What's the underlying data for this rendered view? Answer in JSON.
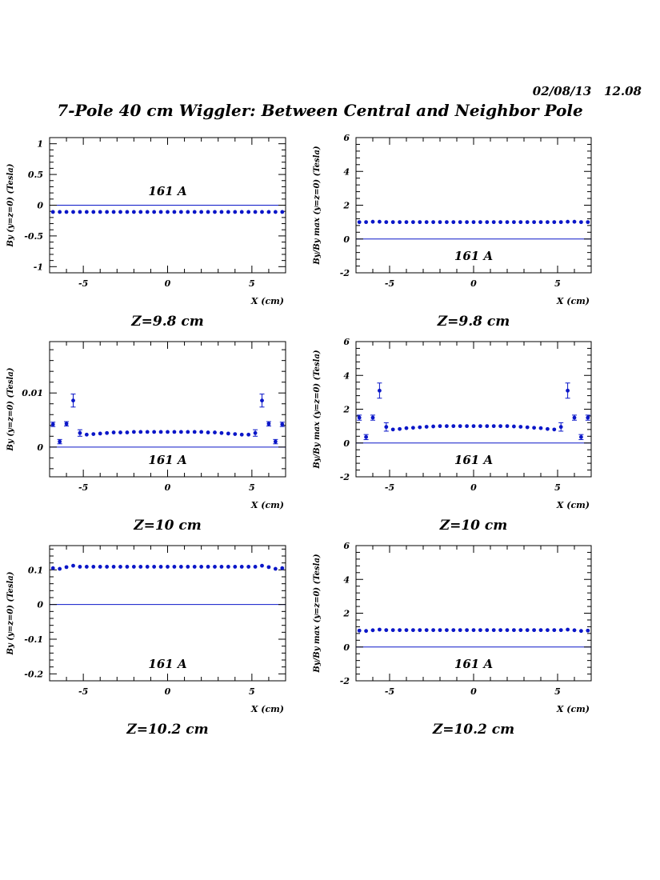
{
  "header": {
    "timestamp": "02/08/13   12.08",
    "title": "7-Pole 40 cm Wiggler: Between Central and Neighbor Pole"
  },
  "chart_data": [
    {
      "type": "scatter",
      "ylabel": "By (y=z=0) (Tesla)",
      "xlabel": "X (cm)",
      "annotation": "161 A",
      "caption": "Z=9.8 cm",
      "xlim": [
        -7,
        7
      ],
      "ylim": [
        -1.1,
        1.1
      ],
      "xticks": [
        -5,
        0,
        5
      ],
      "yticks": [
        -1,
        -0.5,
        0,
        0.5,
        1
      ],
      "ytick_labels": [
        "-1",
        "-0.5",
        "0",
        "0.5",
        "1"
      ],
      "zero_line": true,
      "x": [
        -6.8,
        -6.4,
        -6.0,
        -5.6,
        -5.2,
        -4.8,
        -4.4,
        -4.0,
        -3.6,
        -3.2,
        -2.8,
        -2.4,
        -2.0,
        -1.6,
        -1.2,
        -0.8,
        -0.4,
        0.0,
        0.4,
        0.8,
        1.2,
        1.6,
        2.0,
        2.4,
        2.8,
        3.2,
        3.6,
        4.0,
        4.4,
        4.8,
        5.2,
        5.6,
        6.0,
        6.4,
        6.8
      ],
      "y": [
        -0.11,
        -0.11,
        -0.11,
        -0.11,
        -0.11,
        -0.11,
        -0.11,
        -0.11,
        -0.11,
        -0.11,
        -0.11,
        -0.11,
        -0.11,
        -0.11,
        -0.11,
        -0.11,
        -0.11,
        -0.11,
        -0.11,
        -0.11,
        -0.11,
        -0.11,
        -0.11,
        -0.11,
        -0.11,
        -0.11,
        -0.11,
        -0.11,
        -0.11,
        -0.11,
        -0.11,
        -0.11,
        -0.11,
        -0.11,
        -0.11
      ]
    },
    {
      "type": "scatter",
      "ylabel": "By/By max (y=z=0) (Tesla)",
      "xlabel": "X (cm)",
      "annotation": "161 A",
      "caption": "Z=9.8 cm",
      "xlim": [
        -7,
        7
      ],
      "ylim": [
        -2,
        6
      ],
      "xticks": [
        -5,
        0,
        5
      ],
      "yticks": [
        -2,
        0,
        2,
        4,
        6
      ],
      "ytick_labels": [
        "-2",
        "0",
        "2",
        "4",
        "6"
      ],
      "zero_line": true,
      "x": [
        -6.8,
        -6.4,
        -6.0,
        -5.6,
        -5.2,
        -4.8,
        -4.4,
        -4.0,
        -3.6,
        -3.2,
        -2.8,
        -2.4,
        -2.0,
        -1.6,
        -1.2,
        -0.8,
        -0.4,
        0.0,
        0.4,
        0.8,
        1.2,
        1.6,
        2.0,
        2.4,
        2.8,
        3.2,
        3.6,
        4.0,
        4.4,
        4.8,
        5.2,
        5.6,
        6.0,
        6.4,
        6.8
      ],
      "y": [
        1.0,
        1.0,
        1.02,
        1.02,
        1.0,
        1.0,
        1.0,
        1.0,
        1.0,
        1.0,
        1.0,
        1.0,
        1.0,
        1.0,
        1.0,
        1.0,
        1.0,
        1.0,
        1.0,
        1.0,
        1.0,
        1.0,
        1.0,
        1.0,
        1.0,
        1.0,
        1.0,
        1.0,
        1.0,
        1.0,
        1.0,
        1.02,
        1.02,
        1.0,
        1.0
      ]
    },
    {
      "type": "scatter",
      "ylabel": "By (y=z=0) (Tesla)",
      "xlabel": "X (cm)",
      "annotation": "161 A",
      "caption": "Z=10 cm",
      "xlim": [
        -7,
        7
      ],
      "ylim": [
        -0.0055,
        0.0195
      ],
      "xticks": [
        -5,
        0,
        5
      ],
      "yticks": [
        0,
        0.01
      ],
      "ytick_labels": [
        "0",
        "0.01"
      ],
      "zero_line": true,
      "x": [
        -6.8,
        -6.4,
        -6.0,
        -5.6,
        -5.2,
        -4.8,
        -4.4,
        -4.0,
        -3.6,
        -3.2,
        -2.8,
        -2.4,
        -2.0,
        -1.6,
        -1.2,
        -0.8,
        -0.4,
        0.0,
        0.4,
        0.8,
        1.2,
        1.6,
        2.0,
        2.4,
        2.8,
        3.2,
        3.6,
        4.0,
        4.4,
        4.8,
        5.2,
        5.6,
        6.0,
        6.4,
        6.8
      ],
      "y": [
        0.0042,
        0.001,
        0.0043,
        0.0086,
        0.0026,
        0.0023,
        0.0024,
        0.0025,
        0.0026,
        0.0027,
        0.0027,
        0.0027,
        0.0028,
        0.0028,
        0.0028,
        0.0028,
        0.0028,
        0.0028,
        0.0028,
        0.0028,
        0.0028,
        0.0028,
        0.0028,
        0.0027,
        0.0027,
        0.0026,
        0.0025,
        0.0024,
        0.0023,
        0.0023,
        0.0026,
        0.0086,
        0.0043,
        0.001,
        0.0042
      ],
      "yerr": [
        0.0004,
        0.0004,
        0.0004,
        0.0012,
        0.0006,
        0,
        0,
        0,
        0,
        0,
        0,
        0,
        0,
        0,
        0,
        0,
        0,
        0,
        0,
        0,
        0,
        0,
        0,
        0,
        0,
        0,
        0,
        0,
        0,
        0,
        0.0006,
        0.0012,
        0.0004,
        0.0004,
        0.0004
      ]
    },
    {
      "type": "scatter",
      "ylabel": "By/By max (y=z=0) (Tesla)",
      "xlabel": "X (cm)",
      "annotation": "161 A",
      "caption": "Z=10 cm",
      "xlim": [
        -7,
        7
      ],
      "ylim": [
        -2,
        6
      ],
      "xticks": [
        -5,
        0,
        5
      ],
      "yticks": [
        -2,
        0,
        2,
        4,
        6
      ],
      "ytick_labels": [
        "-2",
        "0",
        "2",
        "4",
        "6"
      ],
      "zero_line": true,
      "x": [
        -6.8,
        -6.4,
        -6.0,
        -5.6,
        -5.2,
        -4.8,
        -4.4,
        -4.0,
        -3.6,
        -3.2,
        -2.8,
        -2.4,
        -2.0,
        -1.6,
        -1.2,
        -0.8,
        -0.4,
        0.0,
        0.4,
        0.8,
        1.2,
        1.6,
        2.0,
        2.4,
        2.8,
        3.2,
        3.6,
        4.0,
        4.4,
        4.8,
        5.2,
        5.6,
        6.0,
        6.4,
        6.8
      ],
      "y": [
        1.5,
        0.35,
        1.5,
        3.1,
        0.95,
        0.8,
        0.83,
        0.88,
        0.9,
        0.93,
        0.96,
        0.98,
        1.0,
        1.0,
        1.0,
        1.0,
        1.0,
        1.0,
        1.0,
        1.0,
        1.0,
        1.0,
        1.0,
        0.98,
        0.96,
        0.93,
        0.9,
        0.88,
        0.83,
        0.8,
        0.95,
        3.1,
        1.5,
        0.35,
        1.5
      ],
      "yerr": [
        0.15,
        0.15,
        0.15,
        0.45,
        0.25,
        0,
        0,
        0,
        0,
        0,
        0,
        0,
        0,
        0,
        0,
        0,
        0,
        0,
        0,
        0,
        0,
        0,
        0,
        0,
        0,
        0,
        0,
        0,
        0,
        0,
        0.25,
        0.45,
        0.15,
        0.15,
        0.15
      ]
    },
    {
      "type": "scatter",
      "ylabel": "By (y=z=0) (Tesla)",
      "xlabel": "X (cm)",
      "annotation": "161 A",
      "caption": "Z=10.2 cm",
      "xlim": [
        -7,
        7
      ],
      "ylim": [
        -0.22,
        0.17
      ],
      "xticks": [
        -5,
        0,
        5
      ],
      "yticks": [
        -0.2,
        -0.1,
        0,
        0.1
      ],
      "ytick_labels": [
        "-0.2",
        "-0.1",
        "0",
        "0.1"
      ],
      "zero_line": true,
      "x": [
        -6.8,
        -6.4,
        -6.0,
        -5.6,
        -5.2,
        -4.8,
        -4.4,
        -4.0,
        -3.6,
        -3.2,
        -2.8,
        -2.4,
        -2.0,
        -1.6,
        -1.2,
        -0.8,
        -0.4,
        0.0,
        0.4,
        0.8,
        1.2,
        1.6,
        2.0,
        2.4,
        2.8,
        3.2,
        3.6,
        4.0,
        4.4,
        4.8,
        5.2,
        5.6,
        6.0,
        6.4,
        6.8
      ],
      "y": [
        0.105,
        0.103,
        0.108,
        0.112,
        0.109,
        0.109,
        0.109,
        0.109,
        0.109,
        0.109,
        0.109,
        0.109,
        0.109,
        0.109,
        0.109,
        0.109,
        0.109,
        0.109,
        0.109,
        0.109,
        0.109,
        0.109,
        0.109,
        0.109,
        0.109,
        0.109,
        0.109,
        0.109,
        0.109,
        0.109,
        0.109,
        0.112,
        0.108,
        0.103,
        0.105
      ]
    },
    {
      "type": "scatter",
      "ylabel": "By/By max (y=z=0) (Tesla)",
      "xlabel": "X (cm)",
      "annotation": "161 A",
      "caption": "Z=10.2 cm",
      "xlim": [
        -7,
        7
      ],
      "ylim": [
        -2,
        6
      ],
      "xticks": [
        -5,
        0,
        5
      ],
      "yticks": [
        -2,
        0,
        2,
        4,
        6
      ],
      "ytick_labels": [
        "-2",
        "0",
        "2",
        "4",
        "6"
      ],
      "zero_line": true,
      "x": [
        -6.8,
        -6.4,
        -6.0,
        -5.6,
        -5.2,
        -4.8,
        -4.4,
        -4.0,
        -3.6,
        -3.2,
        -2.8,
        -2.4,
        -2.0,
        -1.6,
        -1.2,
        -0.8,
        -0.4,
        0.0,
        0.4,
        0.8,
        1.2,
        1.6,
        2.0,
        2.4,
        2.8,
        3.2,
        3.6,
        4.0,
        4.4,
        4.8,
        5.2,
        5.6,
        6.0,
        6.4,
        6.8
      ],
      "y": [
        0.97,
        0.95,
        0.99,
        1.03,
        1.0,
        1.0,
        1.0,
        1.0,
        1.0,
        1.0,
        1.0,
        1.0,
        1.0,
        1.0,
        1.0,
        1.0,
        1.0,
        1.0,
        1.0,
        1.0,
        1.0,
        1.0,
        1.0,
        1.0,
        1.0,
        1.0,
        1.0,
        1.0,
        1.0,
        1.0,
        1.0,
        1.03,
        0.99,
        0.95,
        0.97
      ]
    }
  ]
}
